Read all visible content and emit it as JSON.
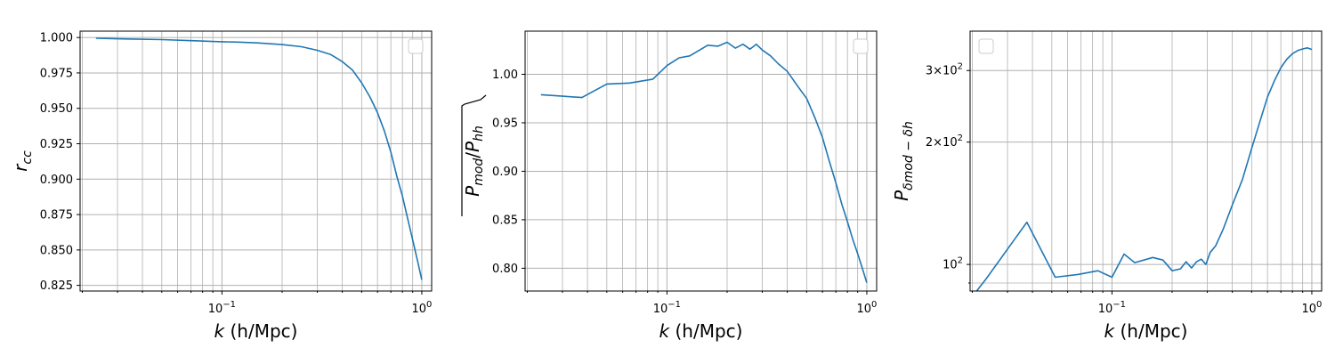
{
  "series_color": "#1f77b4",
  "chart_data": [
    {
      "type": "line",
      "xscale": "log",
      "yscale": "linear",
      "xlim": [
        0.0195,
        1.12
      ],
      "ylim": [
        0.821,
        1.0045
      ],
      "xlabel_var": "k",
      "xlabel_unit": " (h/Mpc)",
      "ylabel_main": "r",
      "ylabel_sub": "cc",
      "grid": true,
      "legend": "upper right (empty)",
      "xticks": [
        {
          "value": 0.1,
          "base": "10",
          "exp": "−1"
        },
        {
          "value": 1,
          "base": "10",
          "exp": "0"
        }
      ],
      "yticks": [
        {
          "value": 0.825,
          "label": "0.825"
        },
        {
          "value": 0.85,
          "label": "0.850"
        },
        {
          "value": 0.875,
          "label": "0.875"
        },
        {
          "value": 0.9,
          "label": "0.900"
        },
        {
          "value": 0.925,
          "label": "0.925"
        },
        {
          "value": 0.95,
          "label": "0.950"
        },
        {
          "value": 0.975,
          "label": "0.975"
        },
        {
          "value": 1.0,
          "label": "1.000"
        }
      ],
      "x": [
        0.0234,
        0.0336,
        0.05,
        0.0706,
        0.1,
        0.12,
        0.15,
        0.2,
        0.25,
        0.3,
        0.35,
        0.4,
        0.45,
        0.5,
        0.55,
        0.6,
        0.65,
        0.7,
        0.75,
        0.8,
        0.85,
        0.9,
        0.95,
        1.0
      ],
      "y": [
        0.9995,
        0.999,
        0.9985,
        0.9978,
        0.997,
        0.9968,
        0.9962,
        0.995,
        0.9935,
        0.991,
        0.988,
        0.983,
        0.977,
        0.968,
        0.958,
        0.947,
        0.934,
        0.919,
        0.902,
        0.888,
        0.872,
        0.857,
        0.843,
        0.829
      ]
    },
    {
      "type": "line",
      "xscale": "log",
      "yscale": "linear",
      "xlim": [
        0.0195,
        1.12
      ],
      "ylim": [
        0.7765,
        1.0445
      ],
      "xlabel_var": "k",
      "xlabel_unit": " (h/Mpc)",
      "ylabel_main": "P",
      "ylabel_sub1": "mod",
      "ylabel_sub2": "hh",
      "grid": true,
      "legend": "upper right (empty)",
      "xticks": [
        {
          "value": 0.1,
          "base": "10",
          "exp": "−1"
        },
        {
          "value": 1,
          "base": "10",
          "exp": "0"
        }
      ],
      "yticks": [
        {
          "value": 0.8,
          "label": "0.80"
        },
        {
          "value": 0.85,
          "label": "0.85"
        },
        {
          "value": 0.9,
          "label": "0.90"
        },
        {
          "value": 0.95,
          "label": "0.95"
        },
        {
          "value": 1.0,
          "label": "1.00"
        }
      ],
      "x": [
        0.0234,
        0.0375,
        0.05,
        0.065,
        0.085,
        0.1,
        0.115,
        0.13,
        0.16,
        0.18,
        0.2,
        0.22,
        0.24,
        0.26,
        0.28,
        0.3,
        0.33,
        0.36,
        0.4,
        0.45,
        0.5,
        0.55,
        0.6,
        0.65,
        0.7,
        0.75,
        0.8,
        0.85,
        0.9,
        0.95,
        1.0
      ],
      "y": [
        0.979,
        0.976,
        0.99,
        0.991,
        0.995,
        1.009,
        1.017,
        1.019,
        1.03,
        1.029,
        1.033,
        1.027,
        1.031,
        1.026,
        1.031,
        1.025,
        1.019,
        1.011,
        1.003,
        0.988,
        0.975,
        0.955,
        0.935,
        0.91,
        0.888,
        0.866,
        0.848,
        0.83,
        0.815,
        0.8,
        0.785
      ]
    },
    {
      "type": "line",
      "xscale": "log",
      "yscale": "log",
      "xlim": [
        0.0195,
        1.12
      ],
      "ylim": [
        86,
        375
      ],
      "xlabel_var": "k",
      "xlabel_unit": " (h/Mpc)",
      "ylabel_main": "P",
      "ylabel_sub": "δmod − δh",
      "grid": true,
      "legend": "upper left (empty)",
      "xticks": [
        {
          "value": 0.1,
          "base": "10",
          "exp": "−1"
        },
        {
          "value": 1,
          "base": "10",
          "exp": "0"
        }
      ],
      "yticks": [
        {
          "value": 100,
          "mant": "",
          "base": "10",
          "exp": "2"
        },
        {
          "value": 200,
          "mant": "2×",
          "base": "10",
          "exp": "2"
        },
        {
          "value": 300,
          "mant": "3×",
          "base": "10",
          "exp": "2"
        }
      ],
      "x": [
        0.0195,
        0.0234,
        0.0375,
        0.052,
        0.068,
        0.085,
        0.1,
        0.115,
        0.13,
        0.16,
        0.18,
        0.2,
        0.22,
        0.235,
        0.25,
        0.265,
        0.28,
        0.295,
        0.31,
        0.33,
        0.36,
        0.4,
        0.45,
        0.5,
        0.55,
        0.6,
        0.65,
        0.7,
        0.75,
        0.8,
        0.85,
        0.9,
        0.95,
        1.0
      ],
      "y": [
        82,
        92,
        127,
        93,
        94.5,
        96.5,
        93,
        106,
        101,
        104,
        102.5,
        96.5,
        97.5,
        101.5,
        98,
        101.5,
        103,
        100,
        107,
        111,
        122,
        140,
        162,
        193,
        225,
        258,
        283,
        305,
        320,
        330,
        336,
        339,
        341,
        338
      ]
    }
  ]
}
